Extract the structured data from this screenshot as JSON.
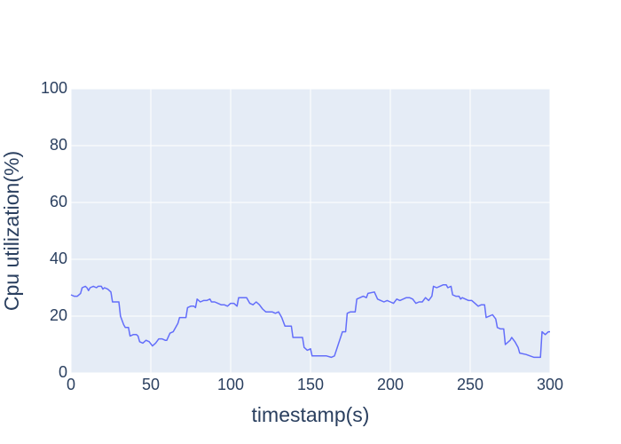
{
  "chart_data": {
    "type": "line",
    "xlabel": "timestamp(s)",
    "ylabel": "Cpu utilization(%)",
    "xlim": [
      0,
      300
    ],
    "xticks": [
      0,
      50,
      100,
      150,
      200,
      250,
      300
    ],
    "ylim": [
      0,
      100
    ],
    "yticks": [
      0,
      20,
      40,
      60,
      80,
      100
    ],
    "grid": true,
    "background": "#e5ecf6",
    "grid_color": "#ffffff",
    "series": [
      {
        "color": "#636efa",
        "x": [
          0,
          2,
          4,
          6,
          7,
          9,
          10,
          11,
          12,
          14,
          16,
          17,
          19,
          20,
          21,
          23,
          25,
          26,
          28,
          30,
          31,
          33,
          34,
          36,
          37,
          39,
          41,
          42,
          43,
          45,
          47,
          49,
          51,
          53,
          55,
          57,
          59,
          60,
          62,
          64,
          66,
          67,
          68,
          70,
          72,
          73,
          75,
          77,
          78,
          79,
          81,
          83,
          85,
          87,
          88,
          90,
          92,
          94,
          96,
          98,
          100,
          102,
          104,
          105,
          107,
          109,
          110,
          112,
          114,
          116,
          118,
          120,
          122,
          124,
          126,
          128,
          130,
          131,
          132,
          134,
          136,
          138,
          139,
          142,
          145,
          146,
          148,
          150,
          151,
          155,
          160,
          163,
          165,
          170,
          172,
          173,
          175,
          177,
          178,
          179,
          181,
          183,
          185,
          186,
          190,
          192,
          194,
          196,
          198,
          200,
          202,
          204,
          206,
          208,
          210,
          212,
          214,
          216,
          218,
          220,
          222,
          224,
          226,
          227,
          229,
          231,
          233,
          235,
          236,
          238,
          239,
          241,
          243,
          244,
          245,
          247,
          249,
          251,
          253,
          255,
          257,
          259,
          260,
          262,
          264,
          266,
          267,
          269,
          271,
          272,
          275,
          276,
          278,
          280,
          281,
          285,
          290,
          292,
          294,
          295,
          297,
          299,
          300
        ],
        "values": [
          27.5,
          27,
          27,
          28,
          30,
          30.5,
          30,
          29,
          30,
          30.5,
          30,
          30.5,
          30.5,
          29.5,
          30,
          29.5,
          28.5,
          25,
          25,
          25,
          20,
          17,
          16,
          16,
          13,
          13.5,
          13.5,
          13,
          11,
          10.5,
          11.5,
          11,
          9.5,
          10.5,
          12,
          12,
          11.5,
          11.5,
          14,
          14.5,
          16.5,
          17.5,
          19.5,
          19.5,
          19.5,
          23,
          23.5,
          23.5,
          23,
          26,
          25,
          25.5,
          25.5,
          26,
          25,
          25,
          24.5,
          24,
          24,
          23.5,
          24.5,
          24.5,
          23.5,
          26.5,
          26.5,
          26.5,
          26.5,
          24.5,
          24,
          25,
          24,
          22.5,
          21.5,
          21.5,
          21.5,
          21,
          21.5,
          20.5,
          19.5,
          16.5,
          16.5,
          16.5,
          12.5,
          12.5,
          12.5,
          9,
          8,
          8.5,
          6,
          6,
          6,
          5.5,
          6,
          14.5,
          14.5,
          21,
          21.5,
          21.5,
          21.5,
          26,
          26.5,
          27,
          26.5,
          28,
          28.5,
          26,
          25.5,
          25,
          25.5,
          25,
          24.5,
          26,
          25.5,
          26,
          26.5,
          26.5,
          26,
          24.5,
          25,
          25,
          26.5,
          25.5,
          27,
          30.5,
          30,
          30.5,
          31,
          31,
          30,
          30.5,
          27.5,
          27,
          27,
          26,
          26.5,
          26,
          25.5,
          25.5,
          24.5,
          23.5,
          24,
          24,
          19.5,
          20,
          20.5,
          19,
          16,
          15.5,
          15.5,
          10,
          11.5,
          12.5,
          11,
          9,
          7,
          6.5,
          5.5,
          5.5,
          5.5,
          14.5,
          13.5,
          14.5,
          14.5
        ]
      }
    ]
  }
}
